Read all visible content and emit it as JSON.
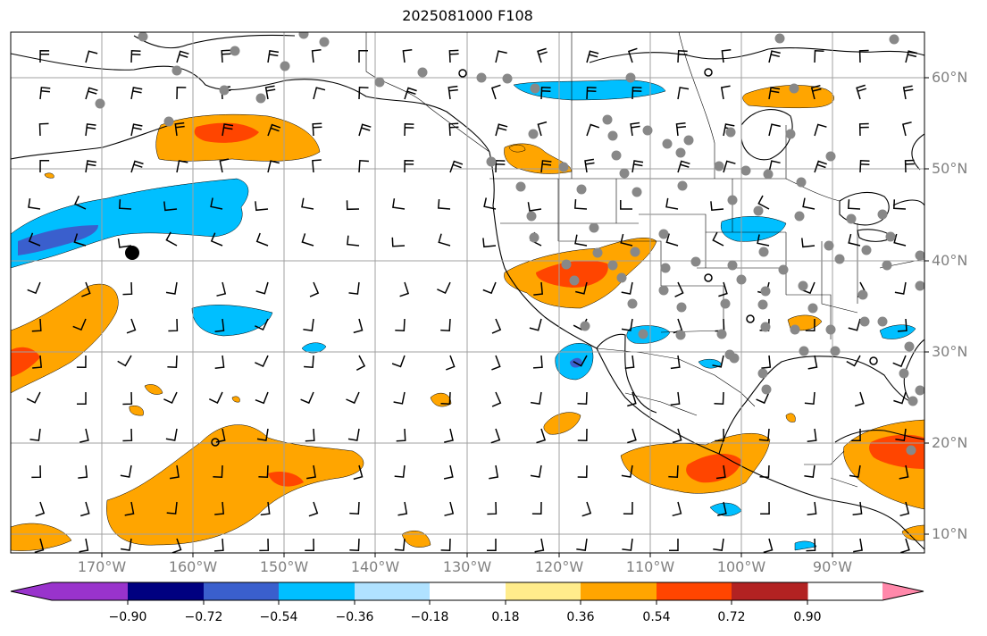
{
  "title": "2025081000 F108",
  "lon_labels": [
    "170°W",
    "160°W",
    "150°W",
    "140°W",
    "130°W",
    "120°W",
    "110°W",
    "100°W",
    "90°W"
  ],
  "lat_labels": [
    "60°N",
    "50°N",
    "40°N",
    "30°N",
    "20°N",
    "10°N"
  ],
  "colorbar": {
    "labels": [
      "−0.90",
      "−0.72",
      "−0.54",
      "−0.36",
      "−0.18",
      "0.18",
      "0.36",
      "0.54",
      "0.72",
      "0.90"
    ],
    "colors": [
      "#9933cc",
      "#000080",
      "#3a5fcd",
      "#00bfff",
      "#b0e2ff",
      "#ffffff",
      "#ffec8b",
      "#ffa500",
      "#ff4500",
      "#b22222",
      "#ff88aa"
    ]
  },
  "fill_colors": {
    "orange": "#ffa500",
    "red": "#ff4500",
    "light_blue": "#00bfff",
    "blue": "#3a5fcd",
    "pale_yellow": "#ffec8b"
  },
  "markers": {
    "station_gray": "#888888",
    "point_black": "#000000"
  }
}
